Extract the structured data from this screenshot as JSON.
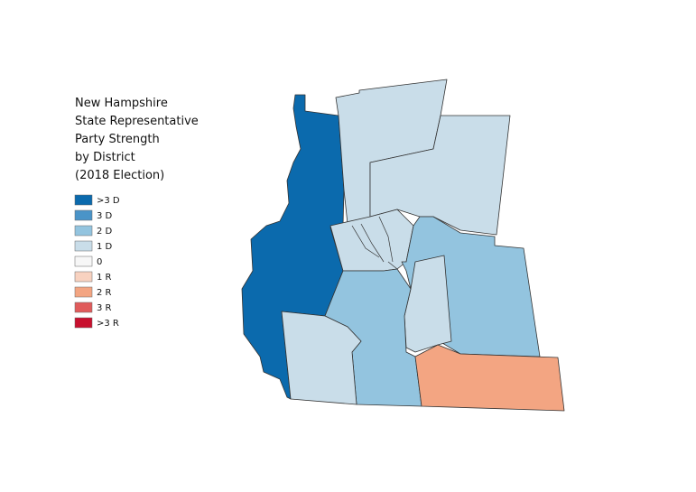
{
  "title_lines": [
    "New Hampshire",
    "State Representative",
    "Party Strength",
    "by District",
    "(2018 Election)"
  ],
  "legend": [
    {
      "label": ">3 D",
      "color": "#0b6aad"
    },
    {
      "label": "3 D",
      "color": "#4a94c8"
    },
    {
      "label": "2 D",
      "color": "#93c4df"
    },
    {
      "label": "1 D",
      "color": "#c9dde9"
    },
    {
      "label": "0",
      "color": "#f7f7f7"
    },
    {
      "label": "1 R",
      "color": "#f8d2c0"
    },
    {
      "label": "2 R",
      "color": "#f3a582"
    },
    {
      "label": "3 R",
      "color": "#e05b5b"
    },
    {
      "label": ">3 R",
      "color": "#c8102e"
    }
  ]
}
